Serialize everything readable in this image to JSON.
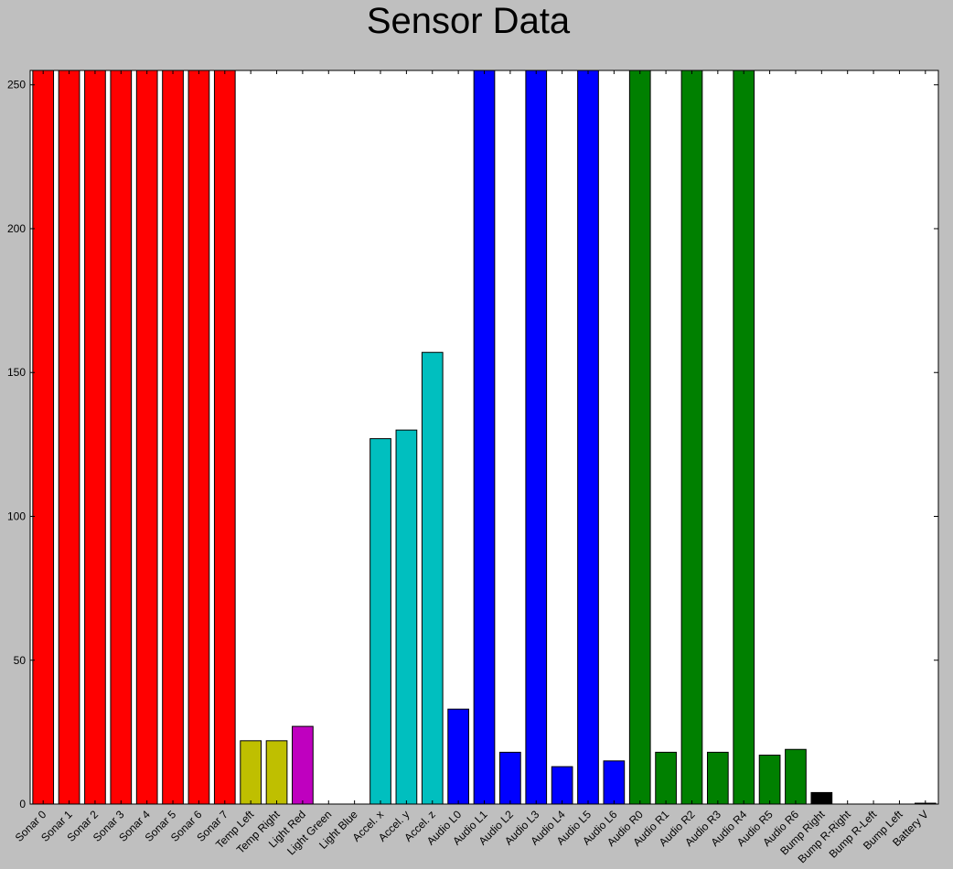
{
  "chart_data": {
    "type": "bar",
    "title": "Sensor Data",
    "xlabel": "",
    "ylabel": "",
    "ylim": [
      0,
      255
    ],
    "yticks": [
      0,
      50,
      100,
      150,
      200,
      250
    ],
    "grid": false,
    "legend": "none",
    "categories": [
      "Sonar 0",
      "Sonar 1",
      "Sonar 2",
      "Sonar 3",
      "Sonar 4",
      "Sonar 5",
      "Sonar 6",
      "Sonar 7",
      "Temp Left",
      "Temp Right",
      "Light Red",
      "Light Green",
      "Light Blue",
      "Accel. x",
      "Accel. y",
      "Accel. z",
      "Audio L0",
      "Audio L1",
      "Audio L2",
      "Audio L3",
      "Audio L4",
      "Audio L5",
      "Audio L6",
      "Audio R0",
      "Audio R1",
      "Audio R2",
      "Audio R3",
      "Audio R4",
      "Audio R5",
      "Audio R6",
      "Bump Right",
      "Bump R-Right",
      "Bump R-Left",
      "Bump Left",
      "Battery V"
    ],
    "values": [
      255,
      255,
      255,
      255,
      255,
      255,
      255,
      255,
      22,
      22,
      27,
      0,
      0,
      127,
      130,
      157,
      33,
      255,
      18,
      255,
      13,
      255,
      15,
      255,
      18,
      255,
      18,
      255,
      17,
      19,
      4,
      0,
      0,
      0,
      0.3
    ],
    "colors": [
      "#ff0000",
      "#ff0000",
      "#ff0000",
      "#ff0000",
      "#ff0000",
      "#ff0000",
      "#ff0000",
      "#ff0000",
      "#bfbf00",
      "#bfbf00",
      "#bf00bf",
      "#008000",
      "#0000ff",
      "#00bfbf",
      "#00bfbf",
      "#00bfbf",
      "#0000ff",
      "#0000ff",
      "#0000ff",
      "#0000ff",
      "#0000ff",
      "#0000ff",
      "#0000ff",
      "#008000",
      "#008000",
      "#008000",
      "#008000",
      "#008000",
      "#008000",
      "#008000",
      "#000000",
      "#000000",
      "#000000",
      "#000000",
      "#000000"
    ],
    "background": "#bfbfbf",
    "plot_background": "#ffffff"
  }
}
